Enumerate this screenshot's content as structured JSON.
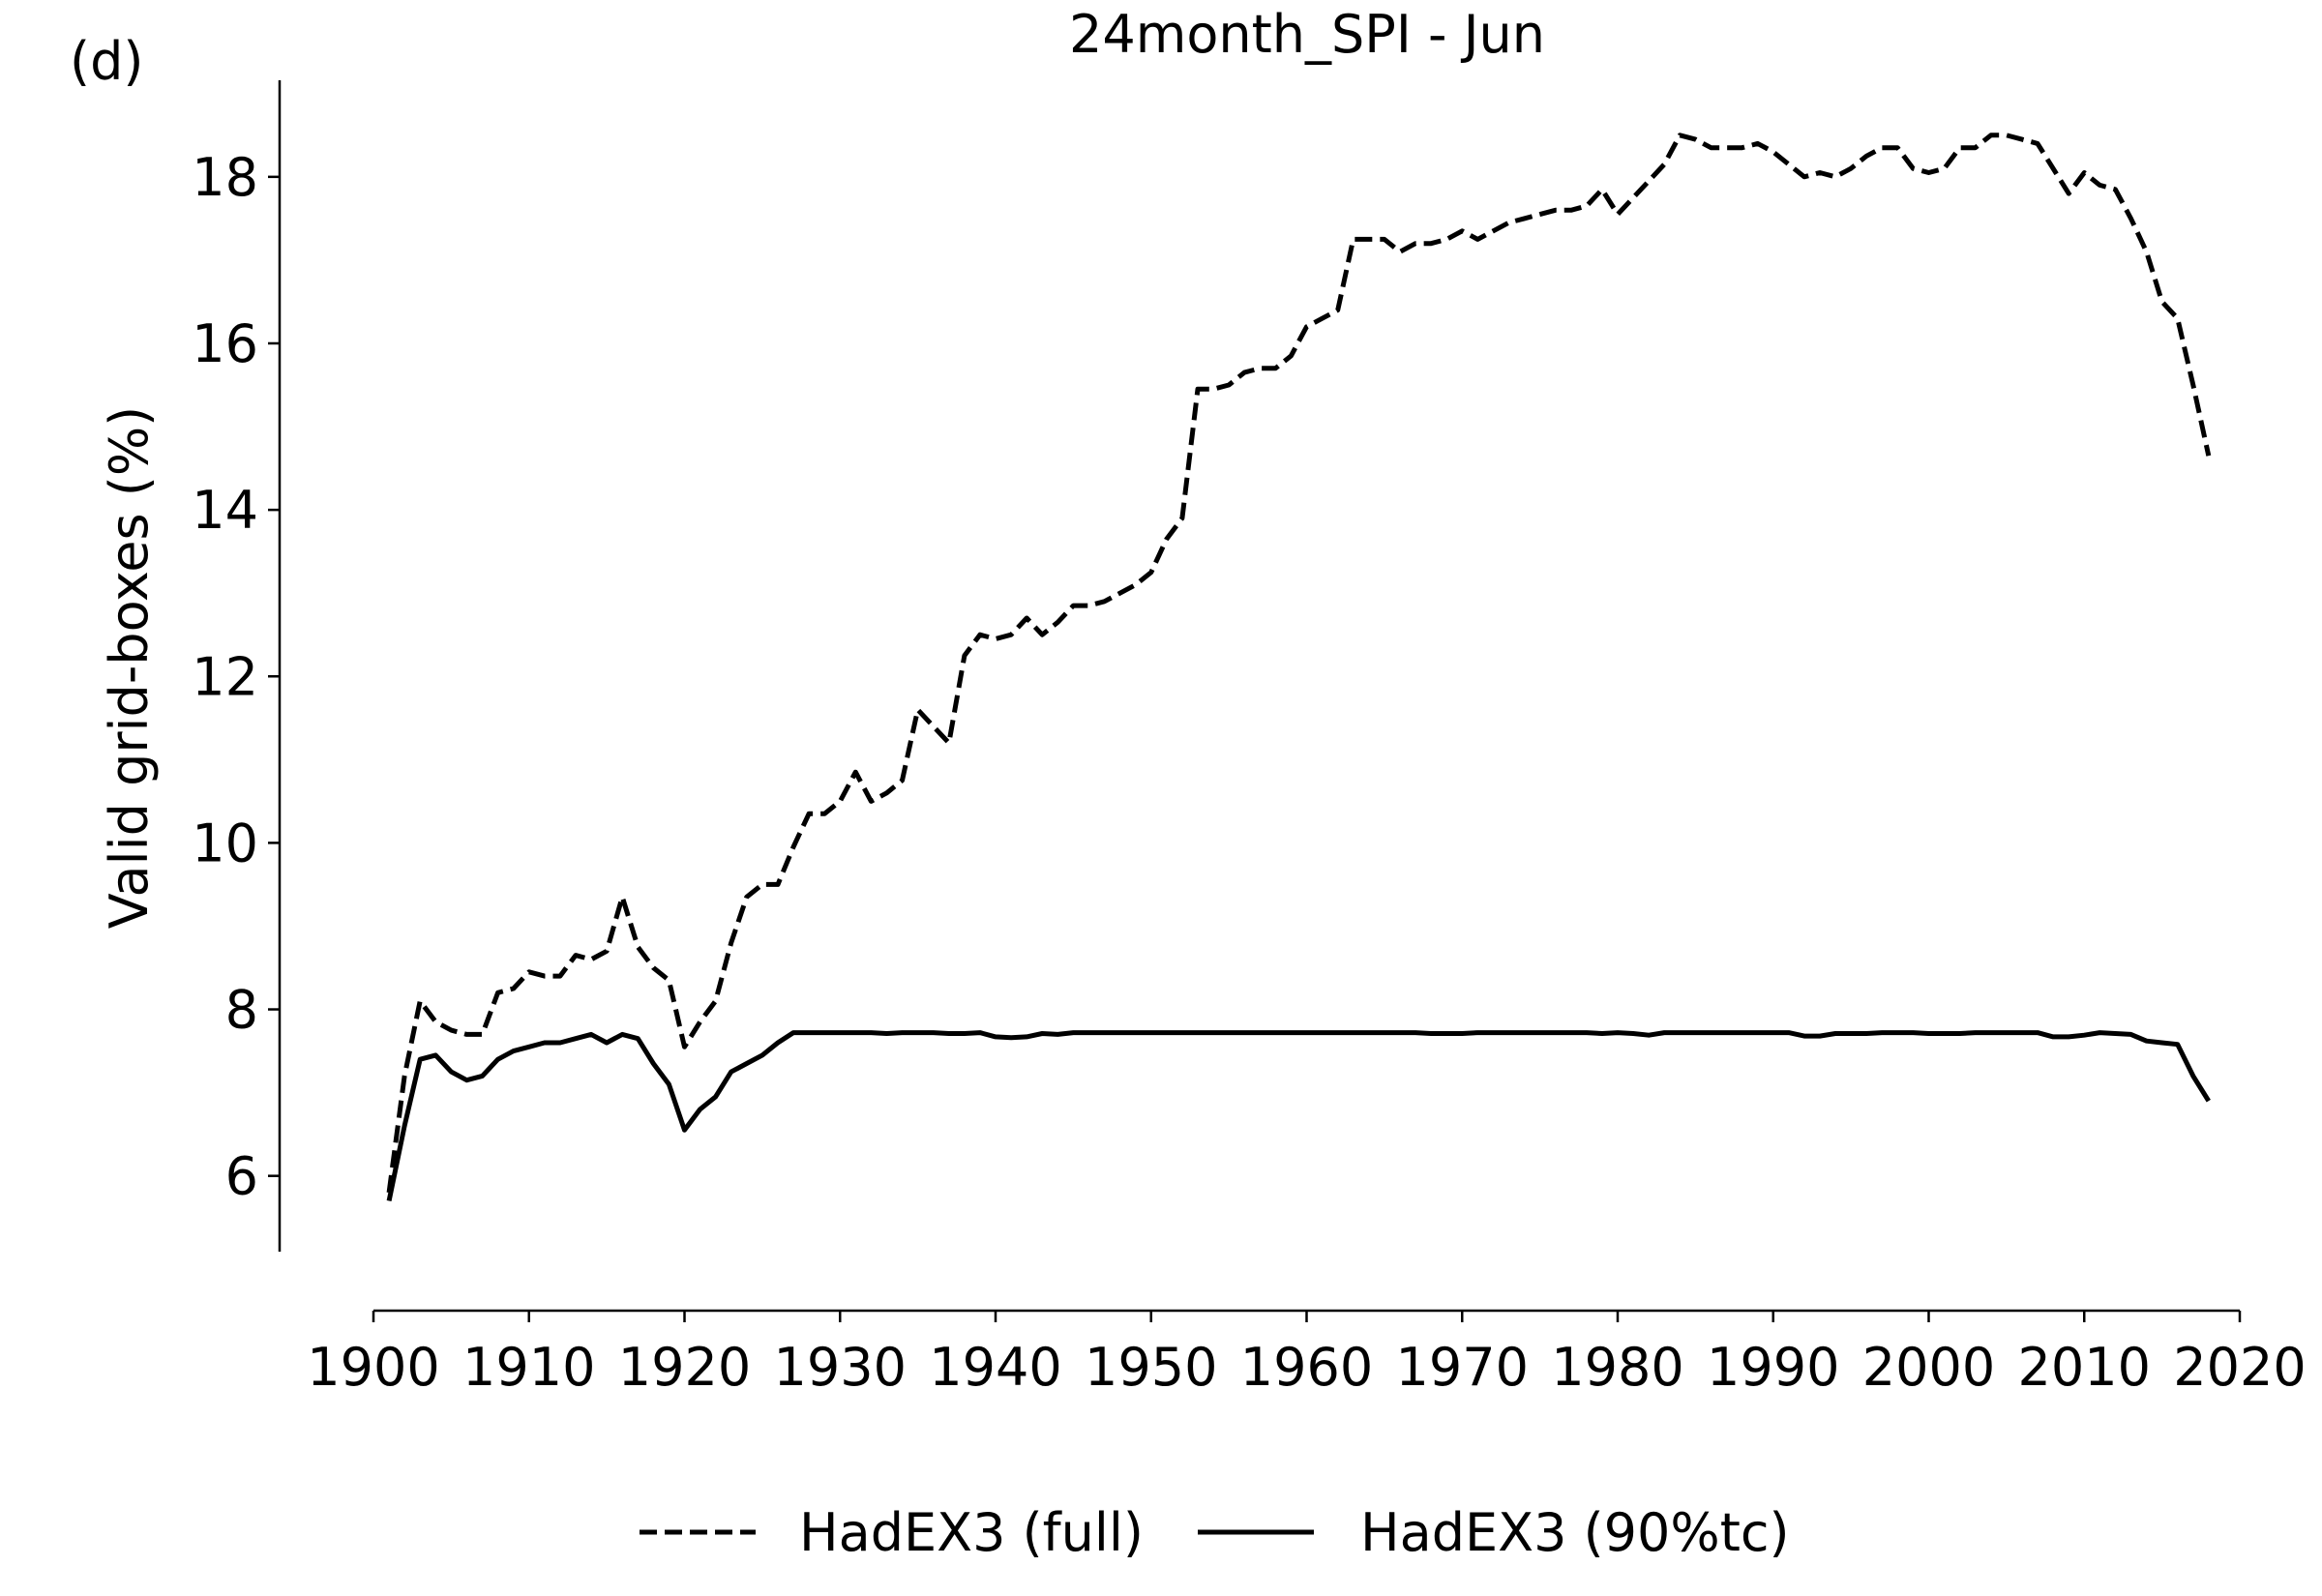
{
  "chart_data": {
    "type": "line",
    "title": "24month_SPI - Jun",
    "annotation": "(d)",
    "y_label": "Valid grid-boxes (%)",
    "x": [
      1901,
      1902,
      1903,
      1904,
      1905,
      1906,
      1907,
      1908,
      1909,
      1910,
      1911,
      1912,
      1913,
      1914,
      1915,
      1916,
      1917,
      1918,
      1919,
      1920,
      1921,
      1922,
      1923,
      1924,
      1925,
      1926,
      1927,
      1928,
      1929,
      1930,
      1931,
      1932,
      1933,
      1934,
      1935,
      1936,
      1937,
      1938,
      1939,
      1940,
      1941,
      1942,
      1943,
      1944,
      1945,
      1946,
      1947,
      1948,
      1949,
      1950,
      1951,
      1952,
      1953,
      1954,
      1955,
      1956,
      1957,
      1958,
      1959,
      1960,
      1961,
      1962,
      1963,
      1964,
      1965,
      1966,
      1967,
      1968,
      1969,
      1970,
      1971,
      1972,
      1973,
      1974,
      1975,
      1976,
      1977,
      1978,
      1979,
      1980,
      1981,
      1982,
      1983,
      1984,
      1985,
      1986,
      1987,
      1988,
      1989,
      1990,
      1991,
      1992,
      1993,
      1994,
      1995,
      1996,
      1997,
      1998,
      1999,
      2000,
      2001,
      2002,
      2003,
      2004,
      2005,
      2006,
      2007,
      2008,
      2009,
      2010,
      2011,
      2012,
      2013,
      2014,
      2015,
      2016,
      2017,
      2018
    ],
    "series": [
      {
        "name": "HadEX3 (full)",
        "color": "#000000",
        "dash": true,
        "values": [
          5.8,
          7.2,
          8.1,
          7.85,
          7.75,
          7.7,
          7.7,
          8.2,
          8.25,
          8.45,
          8.4,
          8.4,
          8.65,
          8.6,
          8.7,
          9.35,
          8.75,
          8.5,
          8.35,
          7.55,
          7.85,
          8.1,
          8.8,
          9.35,
          9.5,
          9.5,
          9.95,
          10.35,
          10.35,
          10.5,
          10.85,
          10.5,
          10.6,
          10.75,
          11.6,
          11.4,
          11.2,
          12.25,
          12.5,
          12.45,
          12.5,
          12.7,
          12.5,
          12.65,
          12.85,
          12.85,
          12.9,
          13.0,
          13.1,
          13.25,
          13.65,
          13.9,
          15.45,
          15.45,
          15.5,
          15.65,
          15.7,
          15.7,
          15.85,
          16.2,
          16.3,
          16.4,
          17.25,
          17.25,
          17.25,
          17.1,
          17.2,
          17.2,
          17.25,
          17.35,
          17.25,
          17.35,
          17.45,
          17.5,
          17.55,
          17.6,
          17.6,
          17.65,
          17.85,
          17.55,
          17.75,
          17.95,
          18.15,
          18.5,
          18.45,
          18.35,
          18.35,
          18.35,
          18.4,
          18.3,
          18.15,
          18.0,
          18.05,
          18.0,
          18.1,
          18.25,
          18.35,
          18.35,
          18.1,
          18.05,
          18.1,
          18.35,
          18.35,
          18.5,
          18.5,
          18.45,
          18.4,
          18.1,
          17.8,
          18.05,
          17.9,
          17.85,
          17.5,
          17.1,
          16.5,
          16.3,
          15.5,
          14.65
        ]
      },
      {
        "name": "HadEX3 (90%tc)",
        "color": "#000000",
        "dash": false,
        "values": [
          5.7,
          6.6,
          7.4,
          7.45,
          7.25,
          7.15,
          7.2,
          7.4,
          7.5,
          7.55,
          7.6,
          7.6,
          7.65,
          7.7,
          7.6,
          7.7,
          7.65,
          7.35,
          7.1,
          6.55,
          6.8,
          6.95,
          7.25,
          7.35,
          7.45,
          7.6,
          7.72,
          7.72,
          7.72,
          7.72,
          7.72,
          7.72,
          7.71,
          7.72,
          7.72,
          7.72,
          7.71,
          7.71,
          7.72,
          7.67,
          7.66,
          7.67,
          7.71,
          7.7,
          7.72,
          7.72,
          7.72,
          7.72,
          7.72,
          7.72,
          7.72,
          7.72,
          7.72,
          7.72,
          7.72,
          7.72,
          7.72,
          7.72,
          7.72,
          7.72,
          7.72,
          7.72,
          7.72,
          7.72,
          7.72,
          7.72,
          7.72,
          7.71,
          7.71,
          7.71,
          7.72,
          7.72,
          7.72,
          7.72,
          7.72,
          7.72,
          7.72,
          7.72,
          7.71,
          7.72,
          7.71,
          7.69,
          7.72,
          7.72,
          7.72,
          7.72,
          7.72,
          7.72,
          7.72,
          7.72,
          7.72,
          7.68,
          7.68,
          7.71,
          7.71,
          7.71,
          7.72,
          7.72,
          7.72,
          7.71,
          7.71,
          7.71,
          7.72,
          7.72,
          7.72,
          7.72,
          7.72,
          7.67,
          7.67,
          7.69,
          7.72,
          7.71,
          7.7,
          7.62,
          7.6,
          7.58,
          7.2,
          6.9
        ]
      }
    ],
    "xlim": [
      1900,
      2020
    ],
    "xticks": [
      1900,
      1910,
      1920,
      1930,
      1940,
      1950,
      1960,
      1970,
      1980,
      1990,
      2000,
      2010,
      2020
    ],
    "ylim": [
      5.09,
      19.16
    ],
    "yticks": [
      6,
      8,
      10,
      12,
      14,
      16,
      18
    ],
    "legend": "bottom"
  }
}
